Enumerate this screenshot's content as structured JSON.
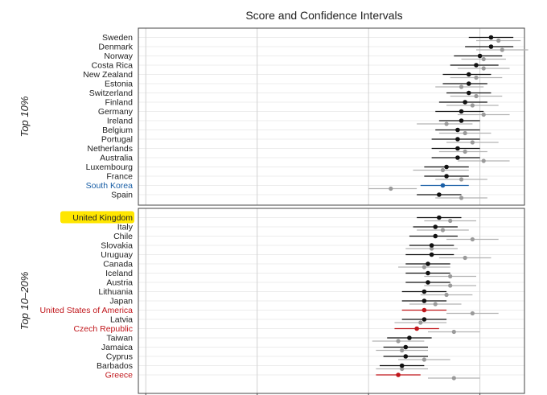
{
  "chart_data": {
    "type": "scatter",
    "title": "Score and Confidence Intervals",
    "colors": {
      "default_label": "#222222",
      "highlight_label": "#1a5fa6",
      "alert_label": "#c0161b",
      "primary_point": "#111111",
      "secondary_point": "#9a9a9a",
      "secondary_line": "#b3b3b3",
      "highlight_box": "#ffe600",
      "grid": "#d2d2d2",
      "panel_border": "#444444"
    },
    "panels": [
      {
        "label": "Top 10%",
        "rows": [
          {
            "name": "Sweden",
            "style": "default",
            "p": [
              0.815,
              0.785,
              0.845
            ],
            "s": [
              0.825,
              0.795,
              0.855
            ]
          },
          {
            "name": "Denmark",
            "style": "default",
            "p": [
              0.815,
              0.78,
              0.845
            ],
            "s": [
              0.83,
              0.795,
              0.865
            ]
          },
          {
            "name": "Norway",
            "style": "default",
            "p": [
              0.8,
              0.765,
              0.83
            ],
            "s": [
              0.805,
              0.775,
              0.835
            ]
          },
          {
            "name": "Costa Rica",
            "style": "default",
            "p": [
              0.795,
              0.76,
              0.825
            ],
            "s": [
              0.805,
              0.77,
              0.84
            ]
          },
          {
            "name": "New Zealand",
            "style": "default",
            "p": [
              0.785,
              0.75,
              0.815
            ],
            "s": [
              0.795,
              0.76,
              0.83
            ]
          },
          {
            "name": "Estonia",
            "style": "default",
            "p": [
              0.785,
              0.75,
              0.81
            ],
            "s": [
              0.775,
              0.74,
              0.805
            ]
          },
          {
            "name": "Switzerland",
            "style": "default",
            "p": [
              0.785,
              0.755,
              0.815
            ],
            "s": [
              0.795,
              0.76,
              0.83
            ]
          },
          {
            "name": "Finland",
            "style": "default",
            "p": [
              0.78,
              0.745,
              0.81
            ],
            "s": [
              0.79,
              0.755,
              0.825
            ]
          },
          {
            "name": "Germany",
            "style": "default",
            "p": [
              0.775,
              0.74,
              0.805
            ],
            "s": [
              0.805,
              0.77,
              0.84
            ]
          },
          {
            "name": "Ireland",
            "style": "default",
            "p": [
              0.775,
              0.745,
              0.8
            ],
            "s": [
              0.755,
              0.715,
              0.79
            ]
          },
          {
            "name": "Belgium",
            "style": "default",
            "p": [
              0.77,
              0.74,
              0.8
            ],
            "s": [
              0.78,
              0.745,
              0.815
            ]
          },
          {
            "name": "Portugal",
            "style": "default",
            "p": [
              0.77,
              0.735,
              0.8
            ],
            "s": [
              0.79,
              0.755,
              0.825
            ]
          },
          {
            "name": "Netherlands",
            "style": "default",
            "p": [
              0.77,
              0.735,
              0.8
            ],
            "s": [
              0.78,
              0.745,
              0.81
            ]
          },
          {
            "name": "Australia",
            "style": "default",
            "p": [
              0.77,
              0.735,
              0.8
            ],
            "s": [
              0.805,
              0.77,
              0.84
            ]
          },
          {
            "name": "Luxembourg",
            "style": "default",
            "p": [
              0.755,
              0.725,
              0.785
            ],
            "s": [
              0.75,
              0.71,
              0.785
            ]
          },
          {
            "name": "France",
            "style": "default",
            "p": [
              0.755,
              0.725,
              0.785
            ],
            "s": [
              0.775,
              0.74,
              0.81
            ]
          },
          {
            "name": "South Korea",
            "style": "highlight",
            "p": [
              0.75,
              0.72,
              0.785
            ],
            "s": [
              0.68,
              0.65,
              0.715
            ]
          },
          {
            "name": "Spain",
            "style": "default",
            "p": [
              0.745,
              0.715,
              0.775
            ],
            "s": [
              0.775,
              0.74,
              0.81
            ]
          }
        ]
      },
      {
        "label": "Top 10–20%",
        "rows": [
          {
            "name": "United Kingdom",
            "style": "boxed",
            "p": [
              0.745,
              0.715,
              0.775
            ],
            "s": [
              0.76,
              0.725,
              0.795
            ]
          },
          {
            "name": "Italy",
            "style": "default",
            "p": [
              0.74,
              0.71,
              0.77
            ],
            "s": [
              0.75,
              0.715,
              0.785
            ]
          },
          {
            "name": "Chile",
            "style": "default",
            "p": [
              0.74,
              0.705,
              0.77
            ],
            "s": [
              0.79,
              0.755,
              0.825
            ]
          },
          {
            "name": "Slovakia",
            "style": "default",
            "p": [
              0.735,
              0.705,
              0.765
            ],
            "s": [
              0.735,
              0.7,
              0.77
            ]
          },
          {
            "name": "Uruguay",
            "style": "default",
            "p": [
              0.735,
              0.7,
              0.765
            ],
            "s": [
              0.78,
              0.745,
              0.815
            ]
          },
          {
            "name": "Canada",
            "style": "default",
            "p": [
              0.73,
              0.7,
              0.76
            ],
            "s": [
              0.725,
              0.69,
              0.76
            ]
          },
          {
            "name": "Iceland",
            "style": "default",
            "p": [
              0.73,
              0.7,
              0.76
            ],
            "s": [
              0.76,
              0.725,
              0.795
            ]
          },
          {
            "name": "Austria",
            "style": "default",
            "p": [
              0.73,
              0.7,
              0.76
            ],
            "s": [
              0.76,
              0.725,
              0.795
            ]
          },
          {
            "name": "Lithuania",
            "style": "default",
            "p": [
              0.725,
              0.695,
              0.755
            ],
            "s": [
              0.755,
              0.72,
              0.79
            ]
          },
          {
            "name": "Japan",
            "style": "default",
            "p": [
              0.725,
              0.695,
              0.755
            ],
            "s": [
              0.74,
              0.705,
              0.775
            ]
          },
          {
            "name": "United States of America",
            "style": "alert",
            "p": [
              0.725,
              0.695,
              0.755
            ],
            "s": [
              0.79,
              0.755,
              0.825
            ]
          },
          {
            "name": "Latvia",
            "style": "default",
            "p": [
              0.725,
              0.695,
              0.755
            ],
            "s": [
              0.72,
              0.685,
              0.755
            ]
          },
          {
            "name": "Czech Republic",
            "style": "alert",
            "p": [
              0.715,
              0.685,
              0.745
            ],
            "s": [
              0.765,
              0.73,
              0.8
            ]
          },
          {
            "name": "Taiwan",
            "style": "default",
            "p": [
              0.705,
              0.675,
              0.735
            ],
            "s": [
              0.69,
              0.655,
              0.725
            ]
          },
          {
            "name": "Jamaica",
            "style": "default",
            "p": [
              0.7,
              0.67,
              0.73
            ],
            "s": [
              0.695,
              0.66,
              0.73
            ]
          },
          {
            "name": "Cyprus",
            "style": "default",
            "p": [
              0.7,
              0.67,
              0.73
            ],
            "s": [
              0.725,
              0.69,
              0.76
            ]
          },
          {
            "name": "Barbados",
            "style": "default",
            "p": [
              0.695,
              0.665,
              0.725
            ],
            "s": [
              0.695,
              0.66,
              0.73
            ]
          },
          {
            "name": "Greece",
            "style": "alert",
            "p": [
              0.69,
              0.66,
              0.72
            ],
            "s": [
              0.765,
              0.73,
              0.8
            ]
          }
        ]
      }
    ],
    "x_range": [
      0.34,
      0.86
    ],
    "x_grid": [
      0.35,
      0.5,
      0.65,
      0.8
    ],
    "x_tick_labels": [],
    "xlabel": "",
    "ylabel": "",
    "grid": true,
    "legend": "none"
  }
}
